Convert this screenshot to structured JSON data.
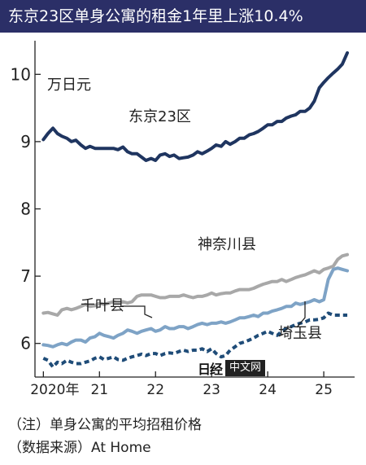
{
  "title": "东京23区单身公寓的租金1年里上涨10.4%",
  "notes": [
    "（注）单身公寓的平均招租价格",
    "（数据来源）At Home"
  ],
  "watermark": {
    "logo": "日经",
    "text": "中文网"
  },
  "colors": {
    "title_bg": "#2b2f67",
    "tokyo": "#1f3560",
    "kanagawa": "#a8a8a8",
    "chiba": "#7ea3c6",
    "saitama": "#1f4c78",
    "axis": "#222222"
  },
  "chart_data": {
    "type": "line",
    "ylabel": "万日元",
    "ylim": [
      5.5,
      10.5
    ],
    "yticks": [
      6,
      7,
      8,
      9,
      10
    ],
    "xlim": [
      2019.85,
      2025.55
    ],
    "xticks": [
      {
        "value": 2020,
        "label": "2020年"
      },
      {
        "value": 2021,
        "label": "21"
      },
      {
        "value": 2022,
        "label": "22"
      },
      {
        "value": 2023,
        "label": "23"
      },
      {
        "value": 2024,
        "label": "24"
      },
      {
        "value": 2025,
        "label": "25"
      }
    ],
    "grid": false,
    "series": [
      {
        "name": "东京23区",
        "style": "solid",
        "color": "#1f3560",
        "x": [
          2020.0,
          2020.08,
          2020.17,
          2020.25,
          2020.33,
          2020.42,
          2020.5,
          2020.58,
          2020.67,
          2020.75,
          2020.83,
          2020.92,
          2021.0,
          2021.08,
          2021.17,
          2021.25,
          2021.33,
          2021.42,
          2021.5,
          2021.58,
          2021.67,
          2021.75,
          2021.83,
          2021.92,
          2022.0,
          2022.08,
          2022.17,
          2022.25,
          2022.33,
          2022.42,
          2022.5,
          2022.58,
          2022.67,
          2022.75,
          2022.83,
          2022.92,
          2023.0,
          2023.08,
          2023.17,
          2023.25,
          2023.33,
          2023.42,
          2023.5,
          2023.58,
          2023.67,
          2023.75,
          2023.83,
          2023.92,
          2024.0,
          2024.08,
          2024.17,
          2024.25,
          2024.33,
          2024.42,
          2024.5,
          2024.58,
          2024.67,
          2024.75,
          2024.83,
          2024.92,
          2025.0,
          2025.08,
          2025.17,
          2025.25,
          2025.33,
          2025.42
        ],
        "values": [
          9.03,
          9.12,
          9.2,
          9.12,
          9.08,
          9.05,
          9.0,
          9.02,
          8.95,
          8.9,
          8.93,
          8.9,
          8.9,
          8.9,
          8.9,
          8.9,
          8.88,
          8.92,
          8.85,
          8.82,
          8.82,
          8.77,
          8.72,
          8.75,
          8.72,
          8.8,
          8.82,
          8.78,
          8.8,
          8.75,
          8.76,
          8.77,
          8.8,
          8.85,
          8.82,
          8.86,
          8.9,
          8.95,
          8.93,
          9.0,
          8.96,
          9.0,
          9.05,
          9.05,
          9.1,
          9.12,
          9.15,
          9.2,
          9.25,
          9.25,
          9.3,
          9.3,
          9.35,
          9.38,
          9.4,
          9.45,
          9.45,
          9.5,
          9.6,
          9.8,
          9.88,
          9.95,
          10.02,
          10.08,
          10.15,
          10.32
        ]
      },
      {
        "name": "神奈川县",
        "style": "solid",
        "color": "#a8a8a8",
        "x": [
          2020.0,
          2020.08,
          2020.17,
          2020.25,
          2020.33,
          2020.42,
          2020.5,
          2020.58,
          2020.67,
          2020.75,
          2020.83,
          2020.92,
          2021.0,
          2021.08,
          2021.17,
          2021.25,
          2021.33,
          2021.42,
          2021.5,
          2021.58,
          2021.67,
          2021.75,
          2021.83,
          2021.92,
          2022.0,
          2022.08,
          2022.17,
          2022.25,
          2022.33,
          2022.42,
          2022.5,
          2022.58,
          2022.67,
          2022.75,
          2022.83,
          2022.92,
          2023.0,
          2023.08,
          2023.17,
          2023.25,
          2023.33,
          2023.42,
          2023.5,
          2023.58,
          2023.67,
          2023.75,
          2023.83,
          2023.92,
          2024.0,
          2024.08,
          2024.17,
          2024.25,
          2024.33,
          2024.42,
          2024.5,
          2024.58,
          2024.67,
          2024.75,
          2024.83,
          2024.92,
          2025.0,
          2025.08,
          2025.17,
          2025.25,
          2025.33,
          2025.42
        ],
        "values": [
          6.45,
          6.46,
          6.44,
          6.42,
          6.5,
          6.52,
          6.5,
          6.52,
          6.55,
          6.58,
          6.55,
          6.56,
          6.6,
          6.58,
          6.6,
          6.62,
          6.6,
          6.62,
          6.6,
          6.62,
          6.7,
          6.72,
          6.72,
          6.72,
          6.7,
          6.68,
          6.68,
          6.7,
          6.7,
          6.7,
          6.72,
          6.7,
          6.68,
          6.7,
          6.7,
          6.72,
          6.75,
          6.72,
          6.74,
          6.75,
          6.75,
          6.78,
          6.8,
          6.8,
          6.8,
          6.82,
          6.85,
          6.88,
          6.9,
          6.92,
          6.92,
          6.95,
          6.92,
          6.95,
          6.98,
          7.0,
          7.02,
          7.05,
          7.08,
          7.05,
          7.1,
          7.12,
          7.15,
          7.25,
          7.3,
          7.32
        ]
      },
      {
        "name": "千叶县",
        "style": "solid",
        "color": "#7ea3c6",
        "x": [
          2020.0,
          2020.08,
          2020.17,
          2020.25,
          2020.33,
          2020.42,
          2020.5,
          2020.58,
          2020.67,
          2020.75,
          2020.83,
          2020.92,
          2021.0,
          2021.08,
          2021.17,
          2021.25,
          2021.33,
          2021.42,
          2021.5,
          2021.58,
          2021.67,
          2021.75,
          2021.83,
          2021.92,
          2022.0,
          2022.08,
          2022.17,
          2022.25,
          2022.33,
          2022.42,
          2022.5,
          2022.58,
          2022.67,
          2022.75,
          2022.83,
          2022.92,
          2023.0,
          2023.08,
          2023.17,
          2023.25,
          2023.33,
          2023.42,
          2023.5,
          2023.58,
          2023.67,
          2023.75,
          2023.83,
          2023.92,
          2024.0,
          2024.08,
          2024.17,
          2024.25,
          2024.33,
          2024.42,
          2024.5,
          2024.58,
          2024.67,
          2024.75,
          2024.83,
          2024.92,
          2025.0,
          2025.08,
          2025.17,
          2025.25,
          2025.33,
          2025.42
        ],
        "values": [
          5.98,
          5.97,
          5.95,
          5.98,
          6.0,
          5.98,
          6.02,
          6.05,
          6.05,
          6.02,
          6.08,
          6.1,
          6.15,
          6.12,
          6.1,
          6.08,
          6.12,
          6.15,
          6.2,
          6.18,
          6.15,
          6.18,
          6.2,
          6.22,
          6.18,
          6.2,
          6.25,
          6.22,
          6.22,
          6.25,
          6.25,
          6.22,
          6.25,
          6.28,
          6.3,
          6.28,
          6.3,
          6.3,
          6.32,
          6.3,
          6.32,
          6.35,
          6.38,
          6.38,
          6.4,
          6.42,
          6.4,
          6.45,
          6.45,
          6.48,
          6.5,
          6.52,
          6.55,
          6.55,
          6.6,
          6.58,
          6.6,
          6.62,
          6.65,
          6.62,
          6.65,
          6.95,
          7.1,
          7.12,
          7.1,
          7.08
        ]
      },
      {
        "name": "埼玉县",
        "style": "dashed",
        "color": "#1f4c78",
        "x": [
          2020.0,
          2020.08,
          2020.17,
          2020.25,
          2020.33,
          2020.42,
          2020.5,
          2020.58,
          2020.67,
          2020.75,
          2020.83,
          2020.92,
          2021.0,
          2021.08,
          2021.17,
          2021.25,
          2021.33,
          2021.42,
          2021.5,
          2021.58,
          2021.67,
          2021.75,
          2021.83,
          2021.92,
          2022.0,
          2022.08,
          2022.17,
          2022.25,
          2022.33,
          2022.42,
          2022.5,
          2022.58,
          2022.67,
          2022.75,
          2022.83,
          2022.92,
          2023.0,
          2023.08,
          2023.17,
          2023.25,
          2023.33,
          2023.42,
          2023.5,
          2023.58,
          2023.67,
          2023.75,
          2023.83,
          2023.92,
          2024.0,
          2024.08,
          2024.17,
          2024.25,
          2024.33,
          2024.42,
          2024.5,
          2024.58,
          2024.67,
          2024.75,
          2024.83,
          2024.92,
          2025.0,
          2025.08,
          2025.17,
          2025.25,
          2025.33,
          2025.42
        ],
        "values": [
          5.78,
          5.75,
          5.65,
          5.72,
          5.7,
          5.75,
          5.72,
          5.7,
          5.7,
          5.72,
          5.74,
          5.78,
          5.8,
          5.76,
          5.78,
          5.8,
          5.76,
          5.75,
          5.78,
          5.8,
          5.82,
          5.84,
          5.82,
          5.85,
          5.85,
          5.82,
          5.85,
          5.86,
          5.85,
          5.88,
          5.9,
          5.88,
          5.9,
          5.9,
          5.92,
          5.88,
          5.92,
          5.85,
          5.8,
          5.82,
          5.9,
          5.95,
          6.0,
          6.02,
          6.05,
          6.08,
          6.12,
          6.15,
          6.18,
          6.15,
          6.12,
          6.18,
          6.22,
          6.25,
          6.28,
          6.3,
          6.32,
          6.35,
          6.35,
          6.36,
          6.38,
          6.45,
          6.42,
          6.42,
          6.42,
          6.42
        ]
      }
    ]
  }
}
